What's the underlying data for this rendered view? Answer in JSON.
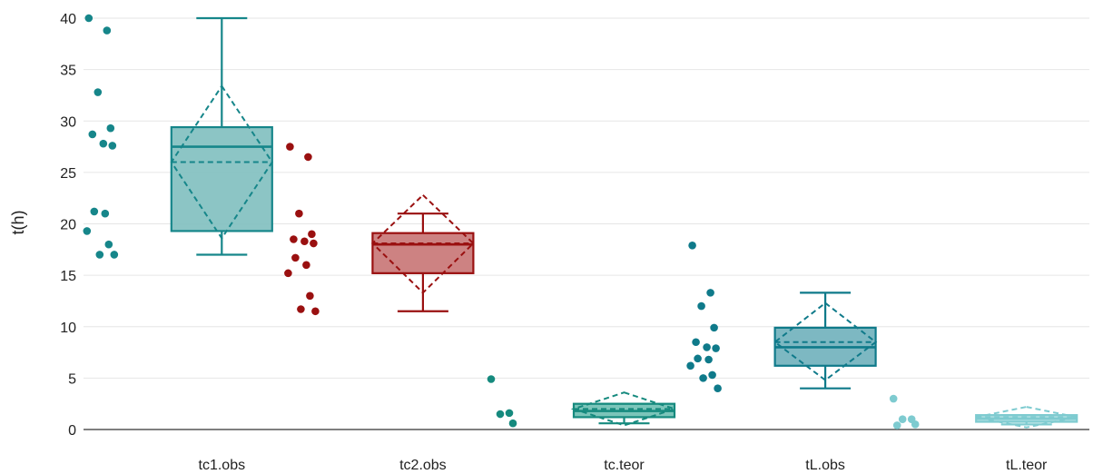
{
  "chart_data": {
    "type": "box",
    "title": "",
    "xlabel": "",
    "ylabel": "t(h)",
    "ylim": [
      0,
      40
    ],
    "yticks": [
      0,
      5,
      10,
      15,
      20,
      25,
      30,
      35,
      40
    ],
    "grid": "horizontal",
    "categories": [
      "tc1.obs",
      "tc2.obs",
      "tc.teor",
      "tL.obs",
      "tL.teor"
    ],
    "series": [
      {
        "category": "tc1.obs",
        "color": "#16868a",
        "fill": "#7fbfbf",
        "whisker_low": 17,
        "q1": 19.3,
        "median": 27.5,
        "q3": 29.4,
        "whisker_high": 40,
        "mean": 26,
        "mean_sd_low": 18.6,
        "mean_sd_high": 33.4,
        "points": [
          40,
          38.8,
          32.8,
          29.3,
          28.7,
          27.8,
          27.6,
          21.2,
          21.0,
          19.3,
          18.0,
          17.0,
          17.0
        ]
      },
      {
        "category": "tc2.obs",
        "color": "#9a1010",
        "fill": "#c87474",
        "whisker_low": 11.5,
        "q1": 15.2,
        "median": 18.0,
        "q3": 19.1,
        "whisker_high": 21.0,
        "mean": 18.1,
        "mean_sd_low": 13.3,
        "mean_sd_high": 22.8,
        "points": [
          27.5,
          26.5,
          21.0,
          19.0,
          18.5,
          18.3,
          18.1,
          16.7,
          16.0,
          15.2,
          13.0,
          11.7,
          11.5
        ]
      },
      {
        "category": "tc.teor",
        "color": "#168a7e",
        "fill": "#6dbfb2",
        "whisker_low": 0.6,
        "q1": 1.2,
        "median": 1.8,
        "q3": 2.5,
        "whisker_high": 2.5,
        "mean": 2.0,
        "mean_sd_low": 0.4,
        "mean_sd_high": 3.6,
        "points": [
          4.9,
          1.6,
          1.5,
          0.6
        ]
      },
      {
        "category": "tL.obs",
        "color": "#0f7a8a",
        "fill": "#6fb0bb",
        "whisker_low": 4.0,
        "q1": 6.2,
        "median": 8.0,
        "q3": 9.9,
        "whisker_high": 13.3,
        "mean": 8.5,
        "mean_sd_low": 4.8,
        "mean_sd_high": 12.3,
        "points": [
          17.9,
          13.3,
          12.0,
          9.9,
          8.5,
          8.0,
          7.9,
          6.9,
          6.8,
          6.2,
          5.3,
          5.0,
          4.0
        ]
      },
      {
        "category": "tL.teor",
        "color": "#7ecbd0",
        "fill": "#a9dde0",
        "whisker_low": 0.5,
        "q1": 0.75,
        "median": 1.05,
        "q3": 1.4,
        "whisker_high": 1.4,
        "mean": 1.2,
        "mean_sd_low": 0.2,
        "mean_sd_high": 2.2,
        "points": [
          3.0,
          1.0,
          1.0,
          0.5,
          0.4
        ]
      }
    ]
  }
}
